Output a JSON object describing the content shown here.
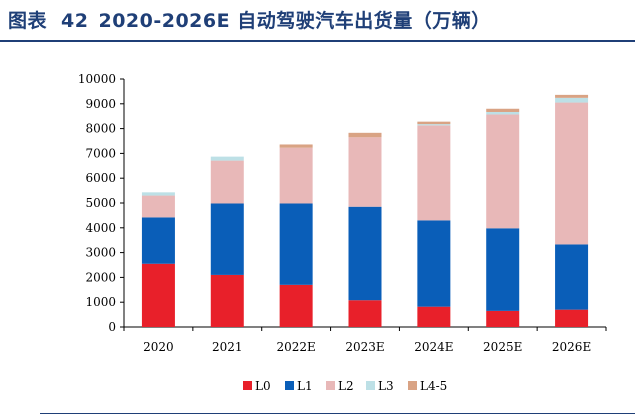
{
  "header": {
    "figure_label": "图表",
    "figure_number": "42",
    "title_text": "2020-2026E 自动驾驶汽车出货量（万辆）"
  },
  "chart_data": {
    "type": "bar",
    "stacked": true,
    "title": "2020-2026E 自动驾驶汽车出货量（万辆）",
    "xlabel": "",
    "ylabel": "",
    "ylim": [
      0,
      10000
    ],
    "yticks": [
      0,
      1000,
      2000,
      3000,
      4000,
      5000,
      6000,
      7000,
      8000,
      9000,
      10000
    ],
    "categories": [
      "2020",
      "2021",
      "2022E",
      "2023E",
      "2024E",
      "2025E",
      "2026E"
    ],
    "series": [
      {
        "name": "L0",
        "color": "#e8202a",
        "values": [
          2550,
          2100,
          1700,
          1080,
          820,
          650,
          700
        ]
      },
      {
        "name": "L1",
        "color": "#0a5eb8",
        "values": [
          1870,
          2880,
          3280,
          3770,
          3480,
          3330,
          2630
        ]
      },
      {
        "name": "L2",
        "color": "#e8b8b8",
        "values": [
          880,
          1730,
          2250,
          2800,
          3830,
          4590,
          5720
        ]
      },
      {
        "name": "L3",
        "color": "#bde0e6",
        "values": [
          130,
          160,
          0,
          0,
          50,
          100,
          190
        ]
      },
      {
        "name": "L4-5",
        "color": "#d9a384",
        "values": [
          0,
          0,
          130,
          180,
          100,
          130,
          120
        ]
      }
    ],
    "legend_position": "bottom",
    "grid": false
  }
}
